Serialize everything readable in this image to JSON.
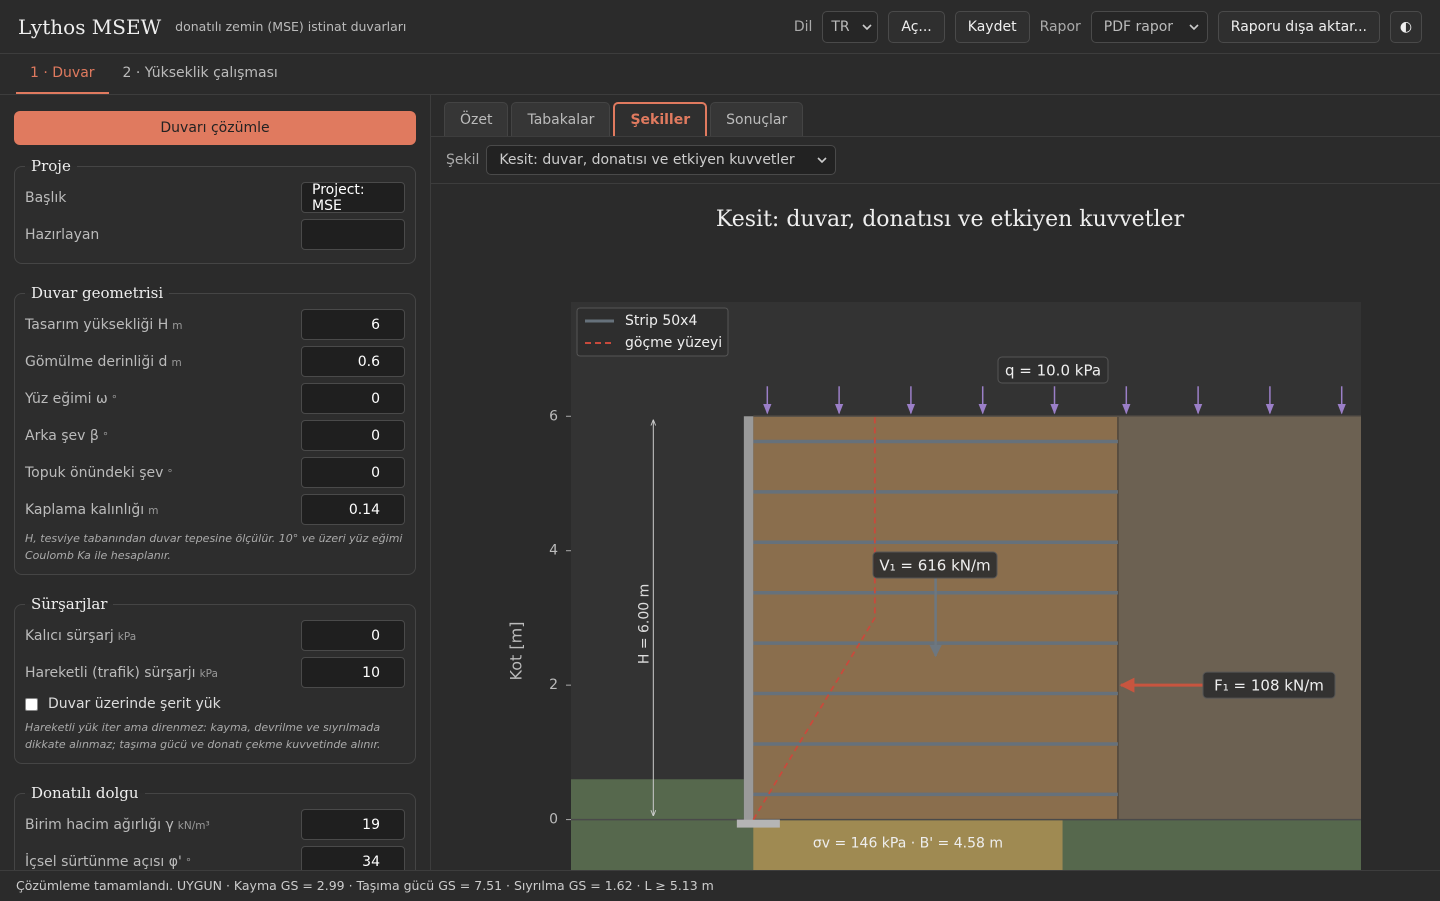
{
  "header": {
    "title": "Lythos MSEW",
    "subtitle": "donatılı zemin (MSE) istinat duvarları",
    "language_label": "Dil",
    "language": "TR",
    "open": "Aç...",
    "save": "Kaydet",
    "report_label": "Rapor",
    "report_format": "PDF rapor",
    "export": "Raporu dışa aktar...",
    "theme": "◐"
  },
  "tabs": [
    "1 · Duvar",
    "2 · Yükseklik çalışması"
  ],
  "active_tab": 0,
  "sidebar": {
    "solve": "Duvarı çözümle",
    "sections": [
      {
        "title": "Proje",
        "fields": [
          {
            "label": "Başlık",
            "value": "Project: MSE"
          },
          {
            "label": "Hazırlayan"
          }
        ]
      },
      {
        "title": "Duvar geometrisi",
        "fields": [
          {
            "label": "Tasarım yüksekliği H",
            "unit": "m",
            "value": 6
          },
          {
            "label": "Gömülme derinliği d",
            "unit": "m",
            "value": 0.6
          },
          {
            "label": "Yüz eğimi ω",
            "unit": "°",
            "value": 0
          },
          {
            "label": "Arka şev β",
            "unit": "°",
            "value": 0
          },
          {
            "label": "Topuk önündeki şev",
            "unit": "°",
            "value": 0
          },
          {
            "label": "Kaplama kalınlığı",
            "unit": "m",
            "value": 0.14
          }
        ],
        "note": "H, tesviye tabanından duvar tepesine ölçülür. 10° ve üzeri yüz eğimi Coulomb Ka ile hesaplanır."
      },
      {
        "title": "Sürşarjlar",
        "fields": [
          {
            "label": "Kalıcı sürşarj",
            "unit": "kPa",
            "value": 0
          },
          {
            "label": "Hareketli (trafik) sürşarjı",
            "unit": "kPa",
            "value": 10
          }
        ],
        "checkbox": {
          "label": "Duvar üzerinde şerit yük",
          "checked": false
        },
        "note": "Hareketli yük iter ama direnmez: kayma, devrilme ve sıyrılmada dikkate alınmaz; taşıma gücü ve donatı çekme kuvvetinde alınır."
      },
      {
        "title": "Donatılı dolgu",
        "fields": [
          {
            "label": "Birim hacim ağırlığı γ",
            "unit": "kN/m³",
            "value": 19
          },
          {
            "label": "İçsel sürtünme açısı φ'",
            "unit": "°",
            "value": 34
          }
        ]
      }
    ]
  },
  "subtabs": [
    "Özet",
    "Tabakalar",
    "Şekiller",
    "Sonuçlar"
  ],
  "active_subtab": 2,
  "figure_select_label": "Şekil",
  "figure_select": "Kesit: duvar, donatısı ve etkiyen kuvvetler",
  "figure": {
    "title": "Kesit: duvar, donatısı ve etkiyen kuvvetler",
    "y_label": "Kot [m]",
    "xlim": [
      -2.7,
      9.0
    ],
    "ylim": [
      -0.75,
      7.7
    ],
    "yticks": [
      0,
      2,
      4,
      6
    ],
    "legend": [
      {
        "name": "Strip 50x4",
        "color": "#66717b"
      },
      {
        "name": "göçme yüzeyi",
        "color": "#c84a3c"
      }
    ],
    "wall_height": 6,
    "embedment": 0.6,
    "facing_thickness": 0.14,
    "reinforcement_length": 5.4,
    "reinforcement_levels": [
      0.375,
      1.125,
      1.875,
      2.625,
      3.375,
      4.125,
      4.875,
      5.625
    ],
    "failure_surface": {
      "x": [
        0,
        1.8,
        1.8
      ],
      "y": [
        0,
        3,
        6
      ]
    },
    "surcharge_label": "q = 10.0 kPa",
    "height_label": "H = 6.00 m",
    "vertical_force": {
      "label": "V₁ = 616 kN/m",
      "x": 2.7
    },
    "horizontal_force": {
      "label": "F₁ = 108 kN/m",
      "y": 2
    },
    "bearing": {
      "label": "σv = 146 kPa · B' = 4.58 m",
      "width": 4.58
    }
  },
  "status": "Çözümleme tamamlandı. UYGUN · Kayma GS = 2.99 · Taşıma gücü GS = 7.51 · Sıyrılma GS = 1.62 · L ≥ 5.13 m"
}
